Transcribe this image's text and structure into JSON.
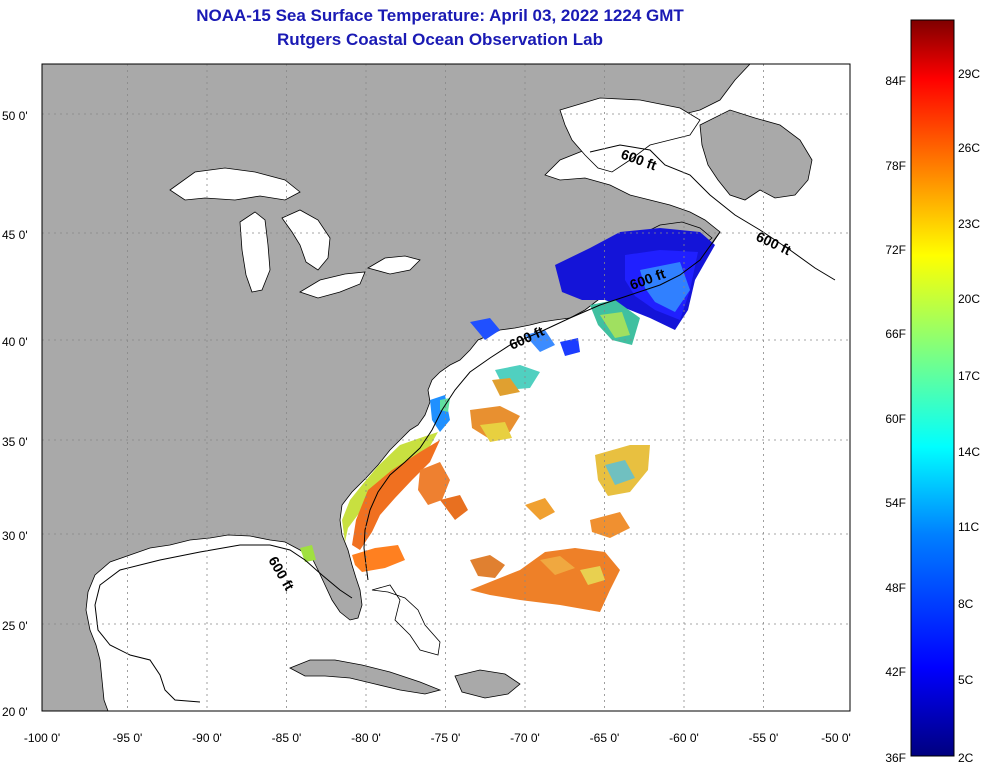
{
  "header": {
    "title": "NOAA-15 Sea Surface Temperature:  April 03, 2022 1224 GMT",
    "subtitle": "Rutgers Coastal Ocean Observation Lab"
  },
  "map": {
    "lon_ticks": [
      "-100 0'",
      "-95 0'",
      "-90 0'",
      "-85 0'",
      "-80 0'",
      "-75 0'",
      "-70 0'",
      "-65 0'",
      "-60 0'",
      "-55 0'",
      "-50 0'"
    ],
    "lat_ticks": [
      "50 0'",
      "45 0'",
      "40 0'",
      "35 0'",
      "30 0'",
      "25 0'",
      "20 0'"
    ],
    "isobath_label": "600 ft",
    "land_color": "#a9a9a9",
    "ocean_color": "#ffffff"
  },
  "colorbar": {
    "fahrenheit_labels": [
      "84F",
      "78F",
      "72F",
      "66F",
      "60F",
      "54F",
      "48F",
      "42F",
      "36F"
    ],
    "celsius_labels": [
      "29C",
      "26C",
      "23C",
      "20C",
      "17C",
      "14C",
      "11C",
      "8C",
      "5C",
      "2C"
    ],
    "colors": [
      "#00007f",
      "#0000ff",
      "#007fff",
      "#00ffff",
      "#7fff7f",
      "#ffff00",
      "#ff7f00",
      "#ff0000",
      "#7f0000"
    ]
  }
}
